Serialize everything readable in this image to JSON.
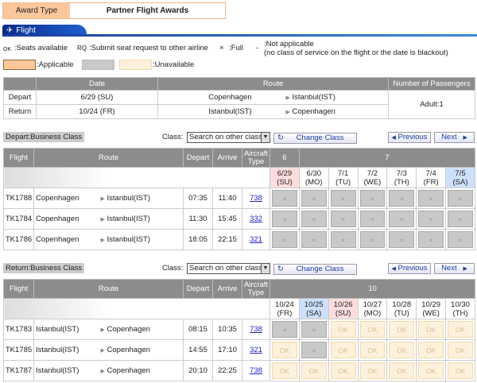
{
  "award": {
    "label": "Award Type",
    "value": "Partner Flight Awards"
  },
  "tab": {
    "label": "Flight"
  },
  "legend": {
    "ok_sym": "OK",
    "ok": ":Seats available",
    "rq_sym": "RQ",
    "rq": ":Submit seat request to other airline",
    "full_sym": "×",
    "full": ":Full",
    "na_sym": "-",
    "na1": ":Not applicable",
    "na2": "(no class of service on the flight or the date is blackout)",
    "applicable": ":Applicable",
    "unavailable": ":Unavailable"
  },
  "summary": {
    "headers": [
      "",
      "Date",
      "Route",
      "Number of Passengers"
    ],
    "rows": [
      {
        "label": "Depart",
        "date": "6/29 (SU)",
        "from": "Copenhagen",
        "to": "Istanbul(IST)"
      },
      {
        "label": "Return",
        "date": "10/24 (FR)",
        "from": "Istanbul(IST)",
        "to": "Copenhagen"
      }
    ],
    "passengers": "Adult:1"
  },
  "controls": {
    "class_label": "Class:",
    "class_value": "Search on other class",
    "change": "Change Class",
    "prev": "Previous",
    "next": "Next"
  },
  "columns": {
    "flight": "Flight",
    "route": "Route",
    "depart": "Depart",
    "arrive": "Arrive",
    "aircraft": "Aircraft Type"
  },
  "sections": [
    {
      "title": "Depart:Business Class",
      "months": [
        {
          "m": "6",
          "span": 1
        },
        {
          "m": "7",
          "span": 6
        }
      ],
      "dates": [
        {
          "d": "6/29",
          "w": "(SU)",
          "t": "su"
        },
        {
          "d": "6/30",
          "w": "(MO)"
        },
        {
          "d": "7/1",
          "w": "(TU)"
        },
        {
          "d": "7/2",
          "w": "(WE)"
        },
        {
          "d": "7/3",
          "w": "(TH)"
        },
        {
          "d": "7/4",
          "w": "(FR)"
        },
        {
          "d": "7/5",
          "w": "(SA)",
          "t": "sa"
        }
      ],
      "flights": [
        {
          "no": "TK1788",
          "from": "Copenhagen",
          "to": "Istanbul(IST)",
          "dep": "07:35",
          "arr": "11:40",
          "ac": "738",
          "avail": [
            "×",
            "×",
            "×",
            "×",
            "×",
            "×",
            "×"
          ]
        },
        {
          "no": "TK1784",
          "from": "Copenhagen",
          "to": "Istanbul(IST)",
          "dep": "11:30",
          "arr": "15:45",
          "ac": "332",
          "avail": [
            "×",
            "×",
            "×",
            "×",
            "×",
            "×",
            "×"
          ]
        },
        {
          "no": "TK1786",
          "from": "Copenhagen",
          "to": "Istanbul(IST)",
          "dep": "18:05",
          "arr": "22:15",
          "ac": "321",
          "avail": [
            "×",
            "×",
            "×",
            "×",
            "×",
            "×",
            "×"
          ]
        }
      ]
    },
    {
      "title": "Return:Business Class",
      "months": [
        {
          "m": "10",
          "span": 7
        }
      ],
      "dates": [
        {
          "d": "10/24",
          "w": "(FR)"
        },
        {
          "d": "10/25",
          "w": "(SA)",
          "t": "sa"
        },
        {
          "d": "10/26",
          "w": "(SU)",
          "t": "su"
        },
        {
          "d": "10/27",
          "w": "(MO)"
        },
        {
          "d": "10/28",
          "w": "(TU)"
        },
        {
          "d": "10/29",
          "w": "(WE)"
        },
        {
          "d": "10/30",
          "w": "(TH)"
        }
      ],
      "flights": [
        {
          "no": "TK1783",
          "from": "Istanbul(IST)",
          "to": "Copenhagen",
          "dep": "08:15",
          "arr": "10:35",
          "ac": "738",
          "avail": [
            "×",
            "×",
            "OK",
            "OK",
            "OK",
            "OK",
            "OK"
          ]
        },
        {
          "no": "TK1785",
          "from": "Istanbul(IST)",
          "to": "Copenhagen",
          "dep": "14:55",
          "arr": "17:10",
          "ac": "321",
          "avail": [
            "OK",
            "×",
            "OK",
            "OK",
            "OK",
            "OK",
            "OK"
          ]
        },
        {
          "no": "TK1787",
          "from": "Istanbul(IST)",
          "to": "Copenhagen",
          "dep": "20:10",
          "arr": "22:25",
          "ac": "738",
          "avail": [
            "OK",
            "OK",
            "OK",
            "OK",
            "OK",
            "OK",
            "OK"
          ]
        }
      ]
    }
  ],
  "colors": {
    "applicable": "#fcc89b",
    "full": "#c8c8c8",
    "unavailable": "#fdf1dc",
    "header": "#8c8c8c",
    "tab": "#1a3c9c"
  }
}
